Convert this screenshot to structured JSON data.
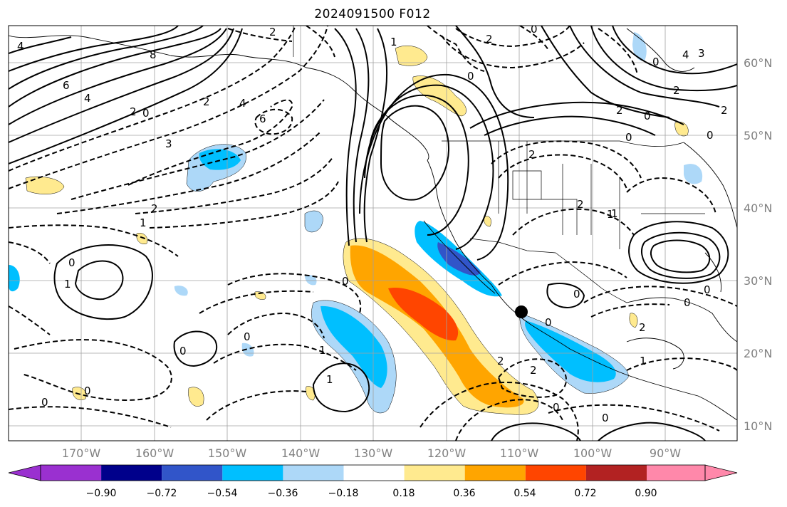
{
  "title": "2024091500 F012",
  "lat_labels": [
    "60°N",
    "50°N",
    "40°N",
    "30°N",
    "20°N",
    "10°N"
  ],
  "lon_labels": [
    "170°W",
    "160°W",
    "150°W",
    "140°W",
    "130°W",
    "120°W",
    "110°W",
    "100°W",
    "90°W"
  ],
  "colorbar": {
    "ticks": [
      "−0.90",
      "−0.72",
      "−0.54",
      "−0.36",
      "−0.18",
      "0.18",
      "0.36",
      "0.54",
      "0.72",
      "0.90"
    ],
    "colors": [
      "#9a30d0",
      "#00008b",
      "#3155c9",
      "#00bfff",
      "#add8f8",
      "#ffffff",
      "#ffea8f",
      "#ffa500",
      "#ff4500",
      "#b22222",
      "#ff88aa"
    ]
  },
  "contour_labels": [
    "2",
    "1",
    "0",
    "2",
    "0",
    "8",
    "6",
    "4",
    "2",
    "0",
    "2",
    "4",
    "3",
    "6",
    "1",
    "2",
    "1",
    "0",
    "0",
    "2",
    "0",
    "2",
    "0",
    "2",
    "1",
    "2",
    "0",
    "0",
    "0",
    "2",
    "1",
    "0",
    "1",
    "2",
    "0",
    "0",
    "2",
    "0",
    "1",
    "0",
    "0",
    "4",
    "3",
    "2",
    "0",
    "0",
    "1",
    "4",
    "0"
  ],
  "marker": "analysis-center-point"
}
